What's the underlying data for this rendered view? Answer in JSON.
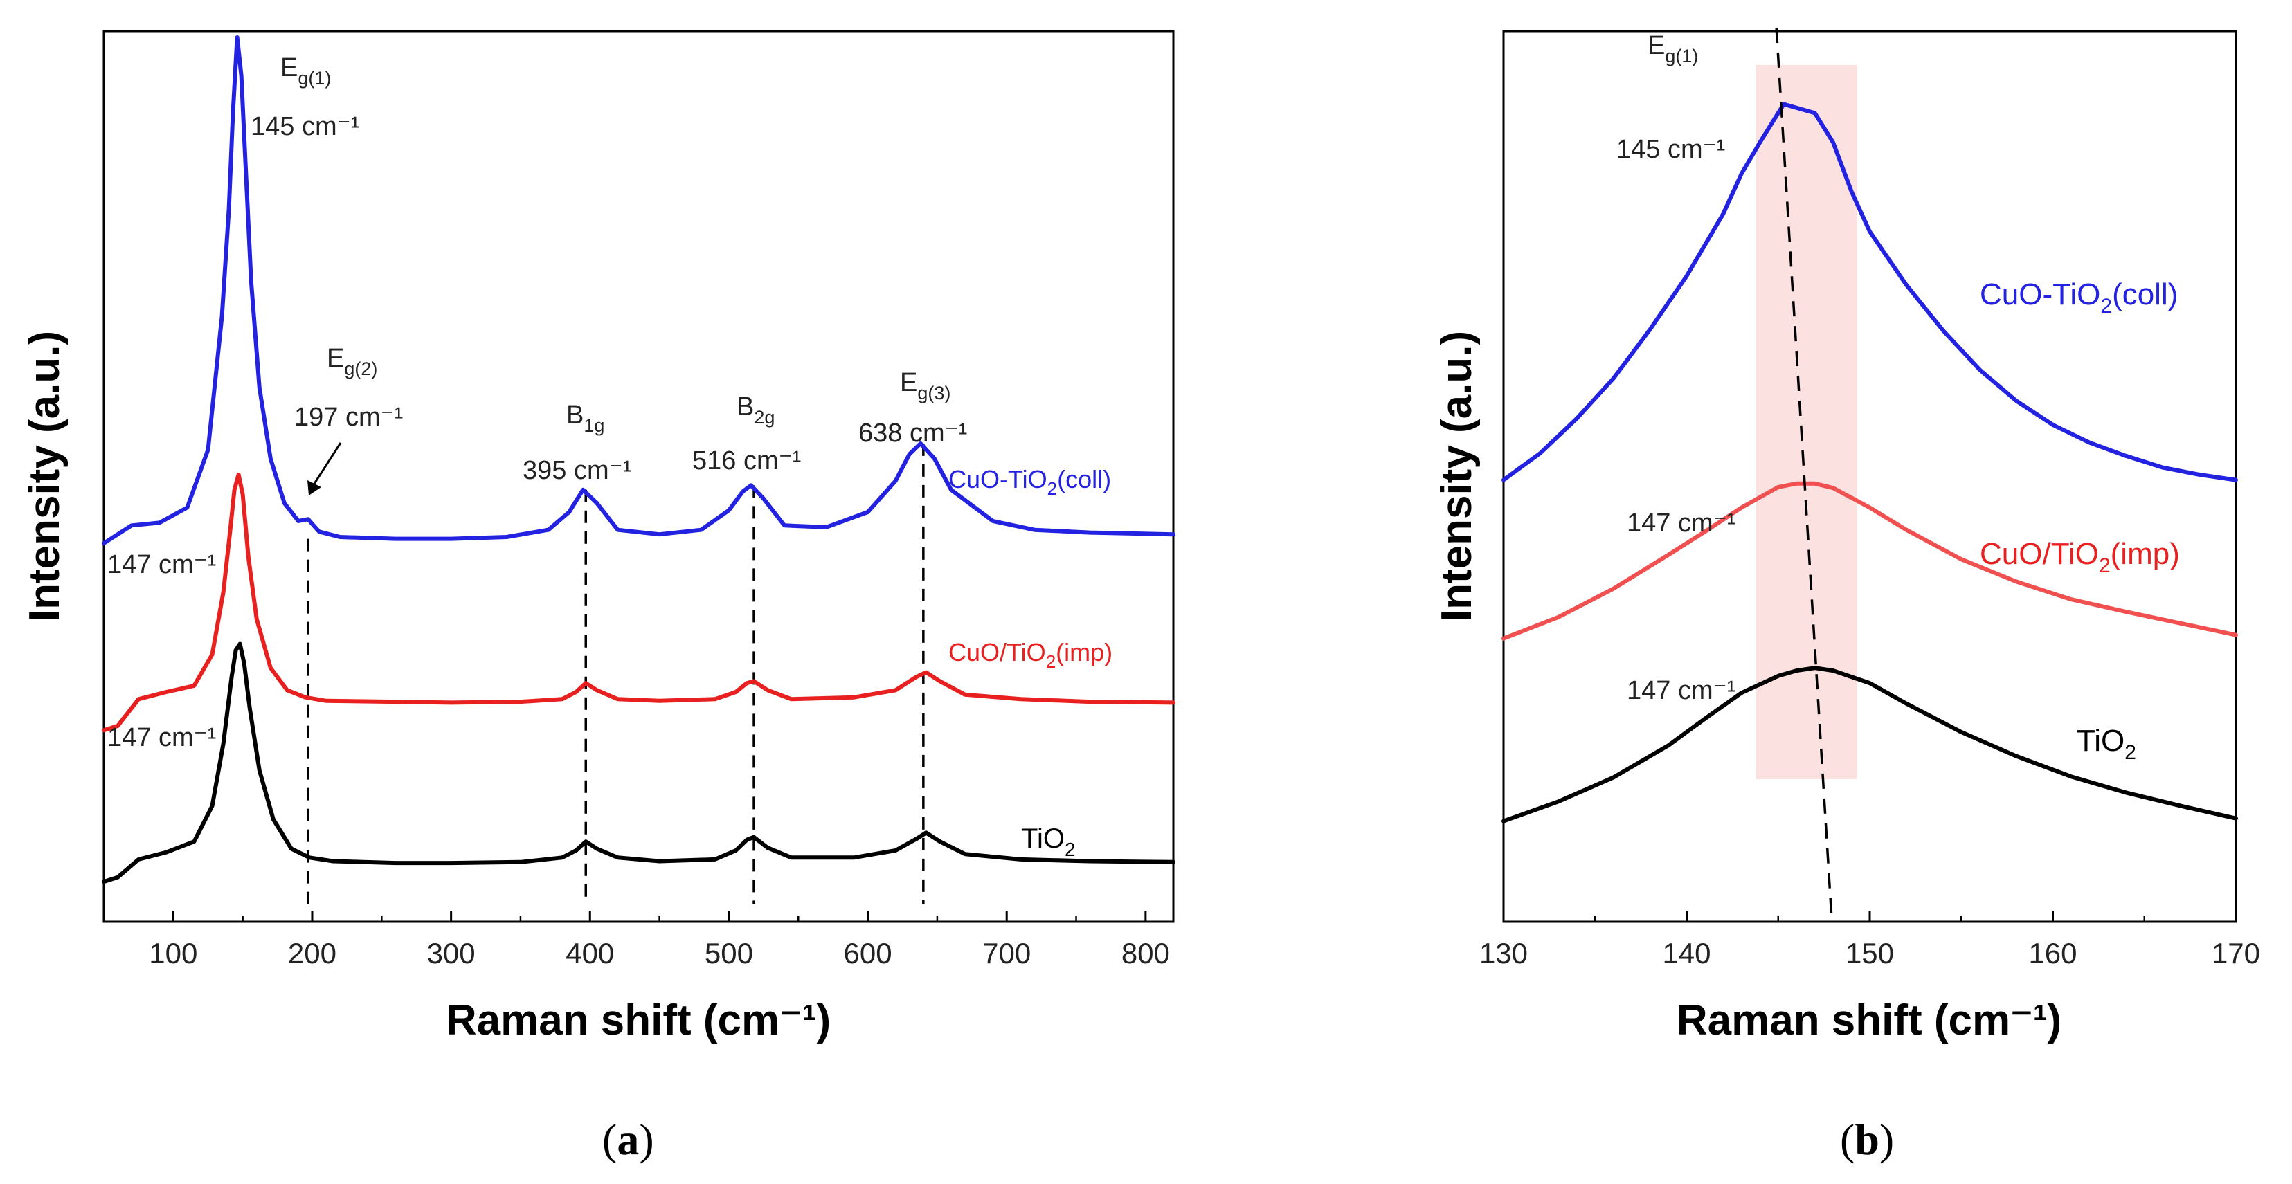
{
  "chart_data": [
    {
      "type": "line",
      "panel_label_open": "(",
      "panel_label_letter": "a",
      "panel_label_close": ")",
      "xlabel": "Raman shift (cm⁻¹)",
      "ylabel": "Intensity (a.u.)",
      "xlim": [
        50,
        820
      ],
      "ylim": [
        0,
        100
      ],
      "xticks": [
        100,
        200,
        300,
        400,
        500,
        600,
        700,
        800
      ],
      "series": [
        {
          "name": "CuO-TiO2(coll)",
          "label_main": "CuO-TiO",
          "label_sub": "2",
          "label_tail": "(coll)",
          "color": "#2222e0",
          "x": [
            50,
            70,
            90,
            110,
            125,
            135,
            140,
            143,
            146,
            149,
            152,
            156,
            162,
            170,
            180,
            190,
            197,
            205,
            220,
            260,
            300,
            340,
            370,
            385,
            395,
            405,
            420,
            450,
            480,
            500,
            510,
            516,
            525,
            540,
            570,
            600,
            620,
            630,
            638,
            648,
            660,
            690,
            720,
            760,
            820
          ],
          "y": [
            42.5,
            44.5,
            44.8,
            46.5,
            53,
            68,
            80,
            91,
            99.3,
            95,
            85,
            72,
            60,
            52,
            47,
            45,
            45.2,
            43.8,
            43.2,
            43,
            43,
            43.2,
            44,
            46,
            48.5,
            47,
            44,
            43.5,
            44,
            46.2,
            48.3,
            49,
            47.5,
            44.5,
            44.3,
            46,
            49.5,
            52.5,
            53.7,
            52,
            48.5,
            45,
            44,
            43.7,
            43.5
          ]
        },
        {
          "name": "CuO/TiO2(imp)",
          "label_main": "CuO/TiO",
          "label_sub": "2",
          "label_tail": "(imp)",
          "color": "#e82020",
          "x": [
            50,
            60,
            75,
            95,
            115,
            128,
            136,
            141,
            144,
            147,
            150,
            154,
            160,
            170,
            182,
            195,
            210,
            260,
            300,
            350,
            380,
            390,
            397,
            405,
            420,
            450,
            490,
            505,
            513,
            518,
            528,
            545,
            590,
            620,
            635,
            642,
            652,
            670,
            710,
            760,
            820
          ],
          "y": [
            21.5,
            22,
            25,
            25.8,
            26.5,
            30,
            37,
            44,
            48.5,
            50.2,
            48,
            41,
            34,
            28.5,
            26,
            25.2,
            24.8,
            24.7,
            24.6,
            24.7,
            25,
            25.8,
            26.8,
            26,
            25,
            24.8,
            25,
            25.8,
            26.8,
            27,
            26,
            25,
            25.2,
            26,
            27.5,
            28,
            27,
            25.5,
            25,
            24.7,
            24.6
          ]
        },
        {
          "name": "TiO2",
          "label_main": "TiO",
          "label_sub": "2",
          "label_tail": "",
          "color": "#000000",
          "x": [
            50,
            60,
            75,
            95,
            115,
            128,
            136,
            142,
            145,
            148,
            151,
            155,
            162,
            172,
            185,
            198,
            215,
            260,
            300,
            350,
            380,
            390,
            397,
            405,
            420,
            450,
            490,
            505,
            513,
            518,
            528,
            545,
            590,
            620,
            635,
            642,
            652,
            670,
            710,
            760,
            820
          ],
          "y": [
            4.5,
            5,
            7,
            7.8,
            9,
            13,
            20,
            27.5,
            30.5,
            31.2,
            29,
            24,
            17,
            11.5,
            8.2,
            7.2,
            6.8,
            6.6,
            6.6,
            6.7,
            7.2,
            8,
            9,
            8.2,
            7.2,
            6.8,
            7,
            8,
            9.2,
            9.5,
            8.3,
            7.2,
            7.2,
            8,
            9.3,
            10,
            9,
            7.6,
            7,
            6.8,
            6.7
          ]
        }
      ],
      "dashed_lines": [
        {
          "x": 197,
          "top": 43
        },
        {
          "x": 397,
          "top": 48.5
        },
        {
          "x": 518,
          "top": 49
        },
        {
          "x": 640,
          "top": 53.7
        }
      ],
      "peaks": [
        {
          "x": 145,
          "y": 99.3,
          "symbol": "E",
          "subscript": "g(1)",
          "label": "145 cm⁻¹"
        },
        {
          "x": 197,
          "y": 45.2,
          "symbol": "E",
          "subscript": "g(2)",
          "label": "197 cm⁻¹"
        },
        {
          "x": 395,
          "y": 48.5,
          "symbol": "B",
          "subscript": "1g",
          "label": "395 cm⁻¹"
        },
        {
          "x": 516,
          "y": 49,
          "symbol": "B",
          "subscript": "2g",
          "label": "516 cm⁻¹"
        },
        {
          "x": 638,
          "y": 53.7,
          "symbol": "E",
          "subscript": "g(3)",
          "label": "638 cm⁻¹"
        }
      ],
      "side_labels": [
        {
          "x": 147,
          "y": 50.2,
          "label": "147 cm⁻¹"
        },
        {
          "x": 148,
          "y": 31.2,
          "label": "147 cm⁻¹"
        }
      ]
    },
    {
      "type": "line",
      "panel_label_open": "(",
      "panel_label_letter": "b",
      "panel_label_close": ")",
      "xlabel": "Raman shift (cm⁻¹)",
      "ylabel": "Intensity (a.u.)",
      "xlim": [
        130,
        170
      ],
      "ylim": [
        0,
        100
      ],
      "xticks": [
        130,
        140,
        150,
        160,
        170
      ],
      "highlight_band": [
        143.8,
        149.3
      ],
      "highlight_color": "#fbe2e0",
      "trend_line": {
        "x_top": 144.9,
        "y_top": 100,
        "x_bottom": 147.9,
        "y_bottom": 1
      },
      "series": [
        {
          "name": "CuO-TiO2(coll)",
          "label_main": "CuO-TiO",
          "label_sub": "2",
          "label_tail": "(coll)",
          "color": "#2222e0",
          "x": [
            130,
            132,
            134,
            136,
            138,
            140,
            142,
            143,
            144,
            145.3,
            147,
            148,
            149,
            150,
            152,
            154,
            156,
            158,
            160,
            162,
            164,
            166,
            168,
            170
          ],
          "y": [
            49.6,
            52.6,
            56.5,
            61,
            66.5,
            72.5,
            79.5,
            84,
            87.5,
            91.8,
            90.8,
            87.5,
            82,
            77.5,
            71.5,
            66.4,
            62,
            58.5,
            55.8,
            53.8,
            52.3,
            51,
            50.2,
            49.6
          ]
        },
        {
          "name": "CuO/TiO2(imp)",
          "label_main": "CuO/TiO",
          "label_sub": "2",
          "label_tail": "(imp)",
          "color": "#f05050",
          "x": [
            130,
            133,
            136,
            139,
            141,
            143,
            145,
            146,
            147,
            148,
            150,
            152,
            155,
            158,
            161,
            164,
            167,
            170
          ],
          "y": [
            31.8,
            34.2,
            37.4,
            41.2,
            43.8,
            46.5,
            48.8,
            49.2,
            49.2,
            48.7,
            46.5,
            44,
            40.7,
            38.2,
            36.2,
            34.8,
            33.5,
            32.2
          ]
        },
        {
          "name": "TiO2",
          "label_main": "TiO",
          "label_sub": "2",
          "label_tail": "",
          "color": "#000000",
          "x": [
            130,
            133,
            136,
            139,
            141,
            143,
            145,
            146,
            147,
            148,
            150,
            152,
            155,
            158,
            161,
            164,
            167,
            170
          ],
          "y": [
            11.3,
            13.5,
            16.2,
            19.8,
            22.8,
            25.7,
            27.6,
            28.2,
            28.5,
            28.2,
            26.8,
            24.5,
            21.3,
            18.6,
            16.3,
            14.5,
            13,
            11.6
          ]
        }
      ],
      "peaks": [
        {
          "x": 145.3,
          "y": 91.8,
          "symbol": "E",
          "subscript": "g(1)",
          "label": "145 cm⁻¹"
        }
      ],
      "side_labels": [
        {
          "x": 146.5,
          "y": 49.2,
          "label": "147 cm⁻¹"
        },
        {
          "x": 147,
          "y": 28.5,
          "label": "147 cm⁻¹"
        }
      ]
    }
  ]
}
